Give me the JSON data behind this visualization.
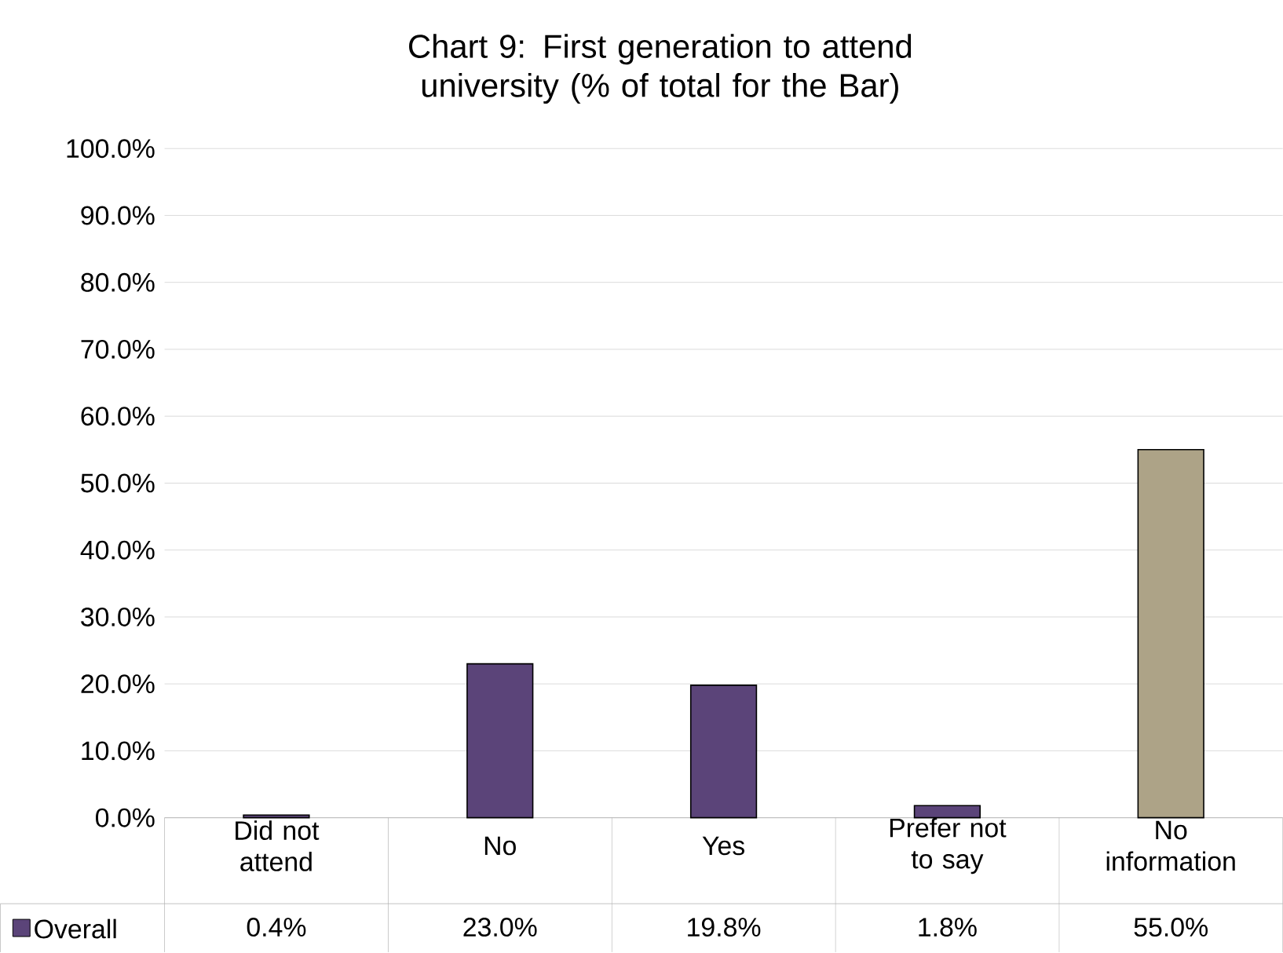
{
  "chart_data": {
    "type": "bar",
    "title": "Chart 9: First generation to attend university (% of total for the Bar)",
    "categories": [
      "Did not attend",
      "No",
      "Yes",
      "Prefer not to say",
      "No information"
    ],
    "series": [
      {
        "name": "Overall",
        "color": "#5b4479",
        "colors": [
          "#5b4479",
          "#5b4479",
          "#5b4479",
          "#5b4479",
          "#ada387"
        ],
        "values": [
          0.4,
          23.0,
          19.8,
          1.8,
          55.0
        ],
        "value_labels": [
          "0.4%",
          "23.0%",
          "19.8%",
          "1.8%",
          "55.0%"
        ]
      }
    ],
    "ylim": [
      0,
      100
    ],
    "yticks": [
      {
        "value": 0,
        "label": "0.0%"
      },
      {
        "value": 10,
        "label": "10.0%"
      },
      {
        "value": 20,
        "label": "20.0%"
      },
      {
        "value": 30,
        "label": "30.0%"
      },
      {
        "value": 40,
        "label": "40.0%"
      },
      {
        "value": 50,
        "label": "50.0%"
      },
      {
        "value": 60,
        "label": "60.0%"
      },
      {
        "value": 70,
        "label": "70.0%"
      },
      {
        "value": 80,
        "label": "80.0%"
      },
      {
        "value": 90,
        "label": "90.0%"
      },
      {
        "value": 100,
        "label": "100.0%"
      }
    ],
    "grid": "y",
    "legend": "bottom"
  }
}
